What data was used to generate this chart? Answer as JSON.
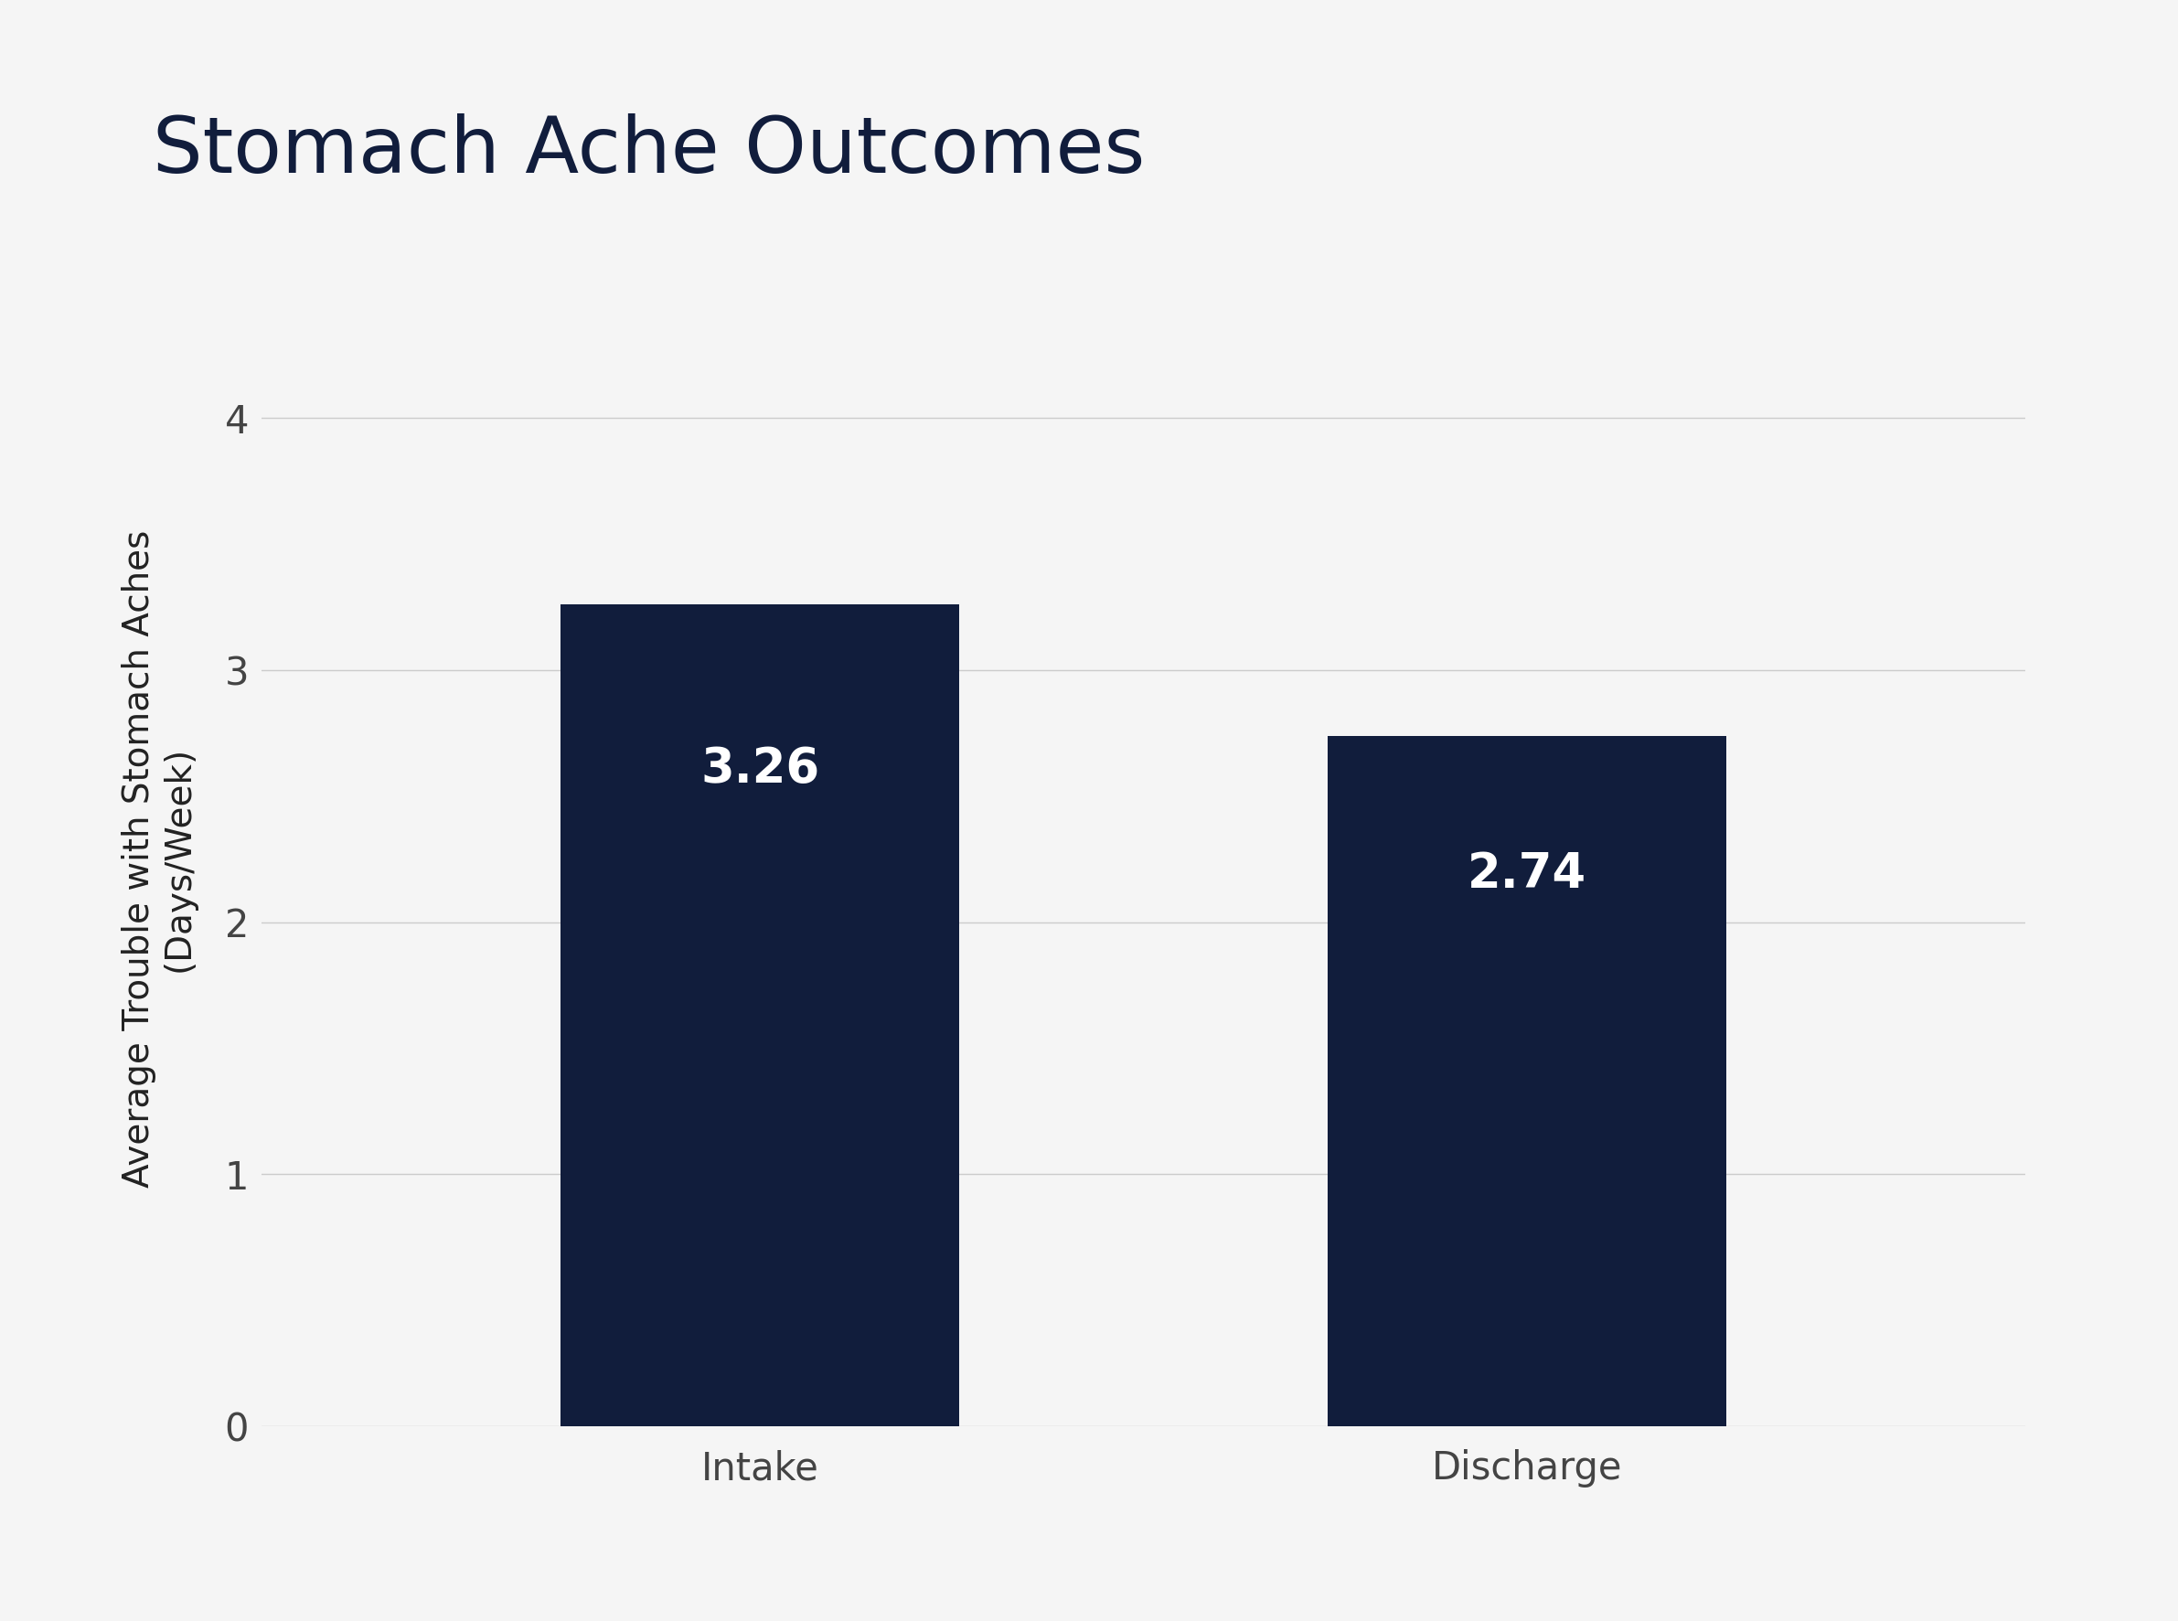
{
  "title": "Stomach Ache Outcomes",
  "categories": [
    "Intake",
    "Discharge"
  ],
  "values": [
    3.26,
    2.74
  ],
  "bar_colors": [
    "#111d3c",
    "#111d3c"
  ],
  "bar_labels": [
    "3.26",
    "2.74"
  ],
  "ylabel_line1": "Average Trouble with Stomach Aches",
  "ylabel_line2": "(Days/Week)",
  "ylim": [
    0,
    4.5
  ],
  "yticks": [
    0,
    1,
    2,
    3,
    4
  ],
  "background_color": "#f5f5f5",
  "title_color": "#111d3c",
  "title_fontsize": 62,
  "label_fontsize": 28,
  "tick_fontsize": 30,
  "bar_label_fontsize": 38,
  "bar_width": 0.52
}
